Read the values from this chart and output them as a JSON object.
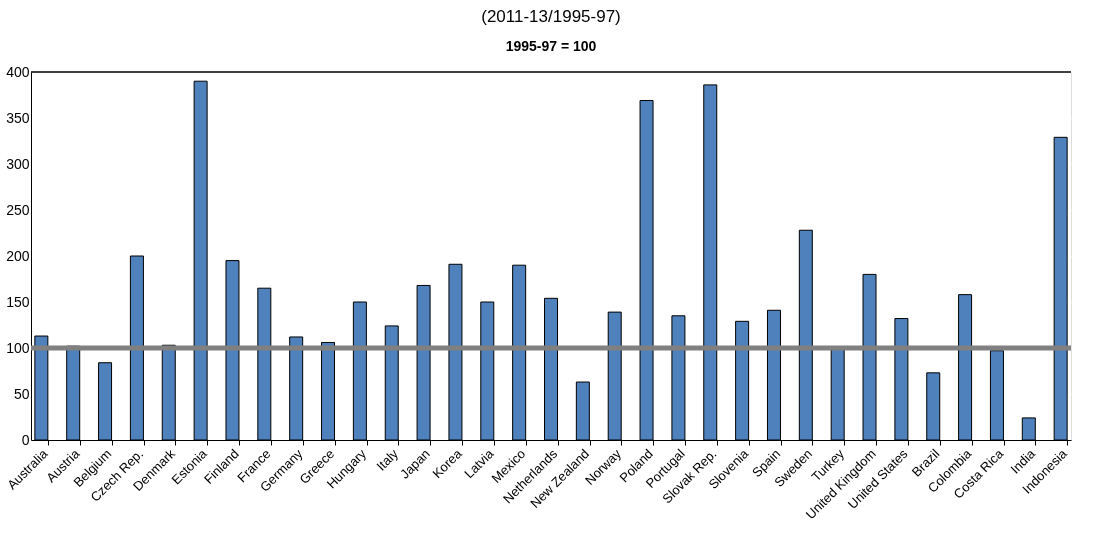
{
  "chart_data": {
    "type": "bar",
    "title": "(2011-13/1995-97)",
    "subtitle": "1995-97 = 100",
    "categories": [
      "Australia",
      "Austria",
      "Belgium",
      "Czech Rep.",
      "Denmark",
      "Estonia",
      "Finland",
      "France",
      "Germany",
      "Greece",
      "Hungary",
      "Italy",
      "Japan",
      "Korea",
      "Latvia",
      "Mexico",
      "Netherlands",
      "New Zealand",
      "Norway",
      "Poland",
      "Portugal",
      "Slovak Rep.",
      "Slovenia",
      "Spain",
      "Sweden",
      "Turkey",
      "United Kingdom",
      "United States",
      "Brazil",
      "Colombia",
      "Costa Rica",
      "India",
      "Indonesia"
    ],
    "values": [
      113,
      102,
      84,
      200,
      103,
      390,
      195,
      165,
      112,
      106,
      150,
      124,
      168,
      191,
      150,
      190,
      154,
      63,
      139,
      369,
      135,
      386,
      129,
      141,
      228,
      101,
      180,
      132,
      73,
      158,
      97,
      24,
      329
    ],
    "color": "#4f81bd",
    "ylim": [
      0,
      400
    ],
    "yticks": [
      0,
      50,
      100,
      150,
      200,
      250,
      300,
      350,
      400
    ],
    "grid": true,
    "ref_lines": [
      {
        "axis": "y",
        "value": 100,
        "color": "#808080"
      }
    ]
  }
}
